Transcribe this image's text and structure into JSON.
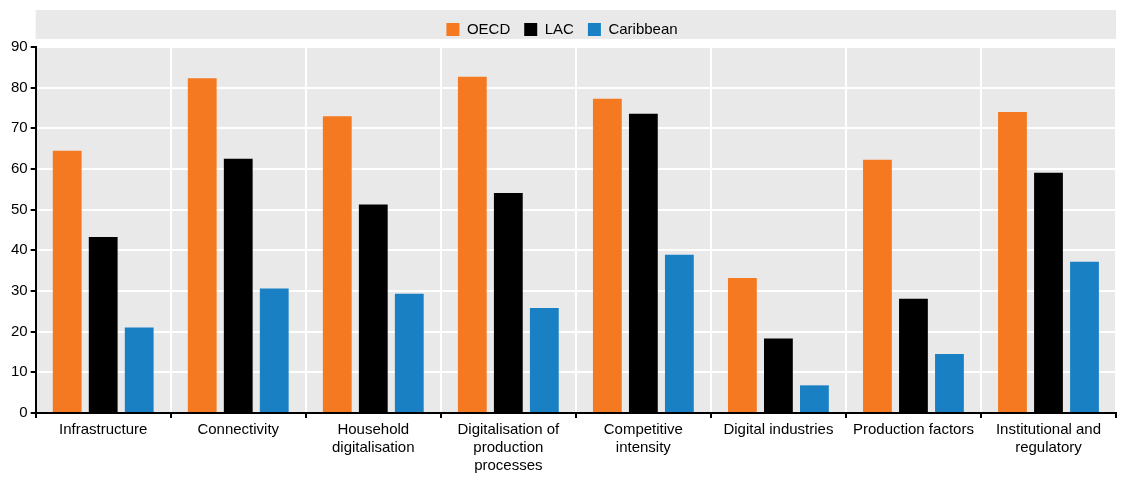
{
  "chart_data": {
    "type": "bar",
    "categories": [
      "Infrastructure",
      "Connectivity",
      "Household digitalisation",
      "Digitalisation of production processes",
      "Competitive intensity",
      "Digital industries",
      "Production factors",
      "Institutional and regulatory"
    ],
    "series": [
      {
        "name": "OECD",
        "color": "#f47920",
        "values": [
          64.5,
          82.3,
          73.0,
          82.7,
          77.3,
          33.2,
          62.3,
          74.0
        ]
      },
      {
        "name": "LAC",
        "color": "#000000",
        "values": [
          43.3,
          62.5,
          51.3,
          54.1,
          73.6,
          18.3,
          28.1,
          59.1
        ]
      },
      {
        "name": "Caribbean",
        "color": "#1a80c4",
        "values": [
          21.0,
          30.6,
          29.3,
          25.8,
          38.9,
          6.8,
          14.5,
          37.2
        ]
      }
    ],
    "ylim": [
      0,
      90
    ],
    "yticks": [
      0,
      10,
      20,
      30,
      40,
      50,
      60,
      70,
      80,
      90
    ],
    "grid": true,
    "legend": "top"
  }
}
